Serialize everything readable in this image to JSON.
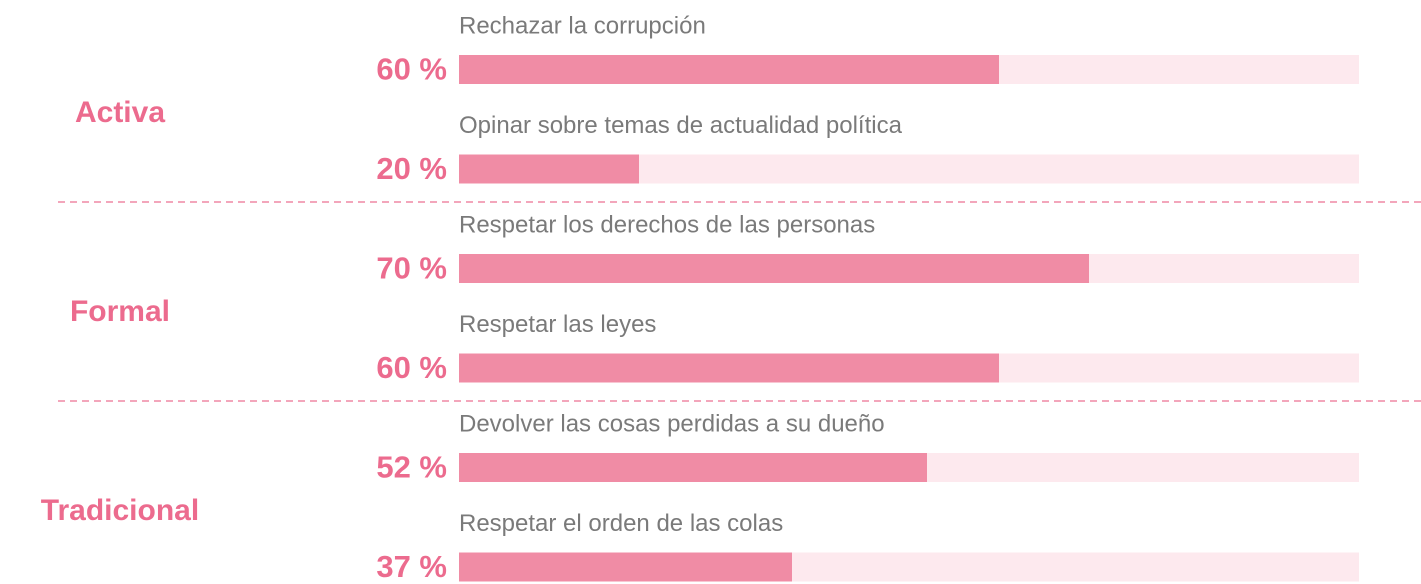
{
  "chart_data": {
    "type": "bar",
    "orientation": "horizontal",
    "xlim": [
      0,
      100
    ],
    "bar_color": "#f08ca5",
    "track_color": "#fde9ee",
    "label_color": "#ec6b8e",
    "groups": [
      {
        "name": "Activa",
        "categories": [
          "Rechazar la corrupción",
          "Opinar sobre temas de actualidad política"
        ],
        "values": [
          60,
          20
        ],
        "value_labels": [
          "60 %",
          "20 %"
        ]
      },
      {
        "name": "Formal",
        "categories": [
          "Respetar los derechos de las personas",
          "Respetar las leyes"
        ],
        "values": [
          70,
          60
        ],
        "value_labels": [
          "70 %",
          "60 %"
        ]
      },
      {
        "name": "Tradicional",
        "categories": [
          "Devolver las cosas perdidas a su dueño",
          "Respetar el orden de las colas"
        ],
        "values": [
          52,
          37
        ],
        "value_labels": [
          "52 %",
          "37 %"
        ]
      }
    ]
  }
}
